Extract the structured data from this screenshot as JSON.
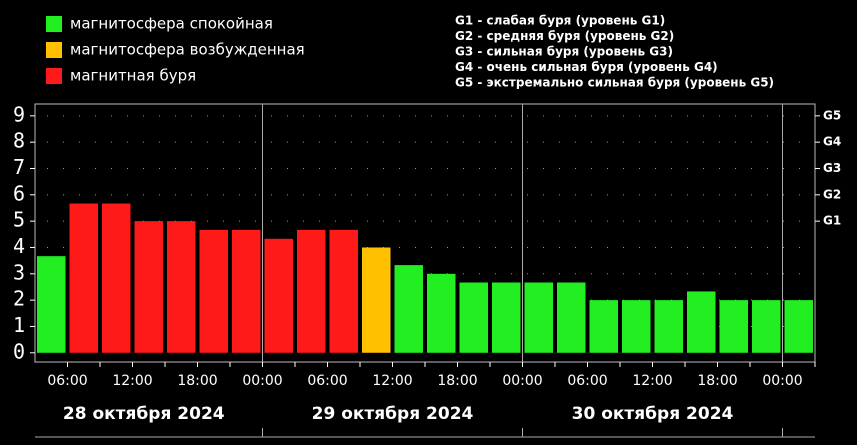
{
  "chart_data": {
    "type": "bar",
    "legend": [
      {
        "label": "магнитосфера спокойная",
        "color": "#22ee22"
      },
      {
        "label": "магнитосфера возбужденная",
        "color": "#ffc000"
      },
      {
        "label": "магнитная буря",
        "color": "#ff1a1a"
      }
    ],
    "storm_notes": [
      "G1 - слабая буря (уровень G1)",
      "G2 - средняя буря (уровень G2)",
      "G3 - сильная буря (уровень G3)",
      "G4 - очень сильная буря (уровень G4)",
      "G5 - экстремально сильная буря (уровень G5)"
    ],
    "values": [
      3.67,
      5.67,
      5.67,
      5.0,
      5.0,
      4.67,
      4.67,
      4.33,
      4.67,
      4.67,
      4.0,
      3.33,
      3.0,
      2.67,
      2.67,
      2.67,
      2.67,
      2.0,
      2.0,
      2.0,
      2.33,
      2.0,
      2.0,
      2.0
    ],
    "colors": [
      "#22ee22",
      "#ff1a1a",
      "#ff1a1a",
      "#ff1a1a",
      "#ff1a1a",
      "#ff1a1a",
      "#ff1a1a",
      "#ff1a1a",
      "#ff1a1a",
      "#ff1a1a",
      "#ffc000",
      "#22ee22",
      "#22ee22",
      "#22ee22",
      "#22ee22",
      "#22ee22",
      "#22ee22",
      "#22ee22",
      "#22ee22",
      "#22ee22",
      "#22ee22",
      "#22ee22",
      "#22ee22",
      "#22ee22"
    ],
    "time_labels": [
      "06:00",
      "12:00",
      "18:00",
      "00:00",
      "06:00",
      "12:00",
      "18:00",
      "00:00",
      "06:00",
      "12:00",
      "18:00",
      "00:00"
    ],
    "days": [
      "28 октября 2024",
      "29 октября 2024",
      "30 октября 2024"
    ],
    "ylim": [
      -0.35,
      9.45
    ],
    "yticks": [
      0,
      1,
      2,
      3,
      4,
      5,
      6,
      7,
      8,
      9
    ],
    "y2lim": [
      -0.35,
      9.45
    ],
    "y2ticks": [
      {
        "value": 5,
        "label": "G1"
      },
      {
        "value": 6,
        "label": "G2"
      },
      {
        "value": 7,
        "label": "G3"
      },
      {
        "value": 8,
        "label": "G4"
      },
      {
        "value": 9,
        "label": "G5"
      }
    ],
    "grid": true
  }
}
